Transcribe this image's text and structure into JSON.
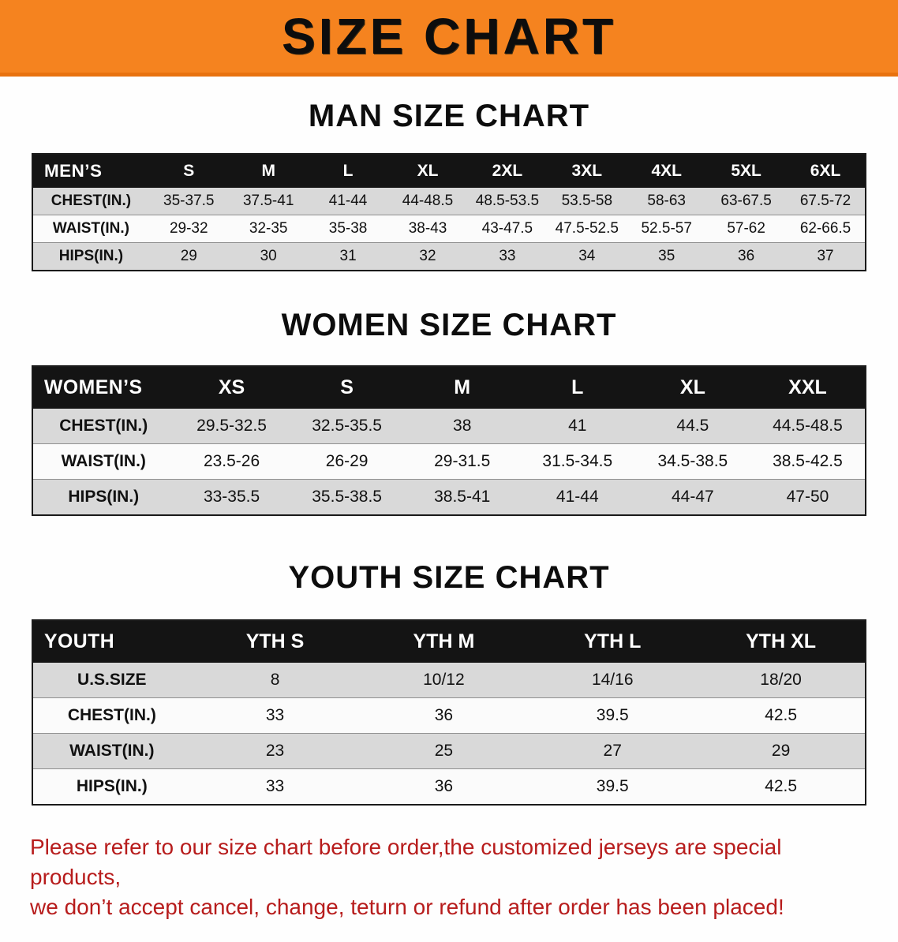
{
  "banner": {
    "title": "SIZE CHART",
    "bg_color": "#f5831f",
    "text_color": "#0d0d0d"
  },
  "sections": [
    {
      "heading": "MAN SIZE CHART",
      "table": {
        "corner": "MEN’S",
        "columns": [
          "S",
          "M",
          "L",
          "XL",
          "2XL",
          "3XL",
          "4XL",
          "5XL",
          "6XL"
        ],
        "rows": [
          {
            "label": "CHEST(IN.)",
            "values": [
              "35-37.5",
              "37.5-41",
              "41-44",
              "44-48.5",
              "48.5-53.5",
              "53.5-58",
              "58-63",
              "63-67.5",
              "67.5-72"
            ]
          },
          {
            "label": "WAIST(IN.)",
            "values": [
              "29-32",
              "32-35",
              "35-38",
              "38-43",
              "43-47.5",
              "47.5-52.5",
              "52.5-57",
              "57-62",
              "62-66.5"
            ]
          },
          {
            "label": "HIPS(IN.)",
            "values": [
              "29",
              "30",
              "31",
              "32",
              "33",
              "34",
              "35",
              "36",
              "37"
            ]
          }
        ]
      }
    },
    {
      "heading": "WOMEN SIZE CHART",
      "table": {
        "corner": "WOMEN’S",
        "columns": [
          "XS",
          "S",
          "M",
          "L",
          "XL",
          "XXL"
        ],
        "rows": [
          {
            "label": "CHEST(IN.)",
            "values": [
              "29.5-32.5",
              "32.5-35.5",
              "38",
              "41",
              "44.5",
              "44.5-48.5"
            ]
          },
          {
            "label": "WAIST(IN.)",
            "values": [
              "23.5-26",
              "26-29",
              "29-31.5",
              "31.5-34.5",
              "34.5-38.5",
              "38.5-42.5"
            ]
          },
          {
            "label": "HIPS(IN.)",
            "values": [
              "33-35.5",
              "35.5-38.5",
              "38.5-41",
              "41-44",
              "44-47",
              "47-50"
            ]
          }
        ]
      }
    },
    {
      "heading": "YOUTH SIZE CHART",
      "table": {
        "corner": "YOUTH",
        "columns": [
          "YTH S",
          "YTH M",
          "YTH L",
          "YTH XL"
        ],
        "rows": [
          {
            "label": "U.S.SIZE",
            "values": [
              "8",
              "10/12",
              "14/16",
              "18/20"
            ]
          },
          {
            "label": "CHEST(IN.)",
            "values": [
              "33",
              "36",
              "39.5",
              "42.5"
            ]
          },
          {
            "label": "WAIST(IN.)",
            "values": [
              "23",
              "25",
              "27",
              "29"
            ]
          },
          {
            "label": "HIPS(IN.)",
            "values": [
              "33",
              "36",
              "39.5",
              "42.5"
            ]
          }
        ]
      }
    }
  ],
  "footer": {
    "line1": "Please refer to our size chart before order,the customized jerseys are special products,",
    "line2": "we don’t accept cancel, change, teturn or refund after order has been placed!",
    "text_color": "#b71c1c"
  }
}
